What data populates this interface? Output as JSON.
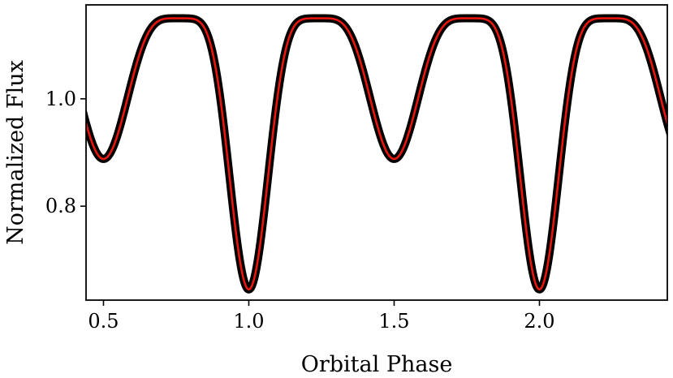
{
  "chart_data": {
    "type": "line",
    "title": "",
    "xlabel": "Orbital Phase",
    "ylabel": "Normalized Flux",
    "xlim": [
      0.44,
      2.44
    ],
    "ylim": [
      0.625,
      1.175
    ],
    "xticks": [
      0.5,
      1.0,
      1.5,
      2.0
    ],
    "xtick_labels": [
      "0.5",
      "1.0",
      "1.5",
      "2.0"
    ],
    "yticks": [
      0.8,
      1.0
    ],
    "ytick_labels": [
      "0.8",
      "1.0"
    ],
    "grid": false,
    "legend": "none",
    "model": {
      "period_phase": 1.0,
      "max_flux": 1.15,
      "primary_min_phase": 1.0,
      "primary_min_flux": 0.645,
      "secondary_min_phase": 0.5,
      "secondary_min_flux": 0.888
    },
    "series": [
      {
        "role": "observed",
        "color": "#000000",
        "style": "thick"
      },
      {
        "role": "model",
        "color": "#e8160c",
        "style": "thin"
      }
    ]
  }
}
